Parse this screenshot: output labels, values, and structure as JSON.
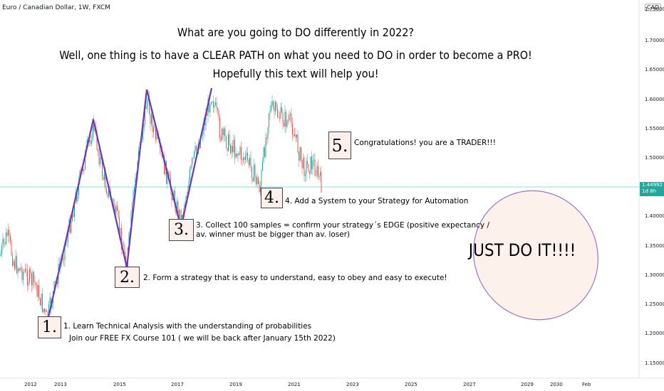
{
  "header": {
    "symbol_line": "Euro / Canadian Dollar, 1W, FXCM",
    "currency_badge": "CAD"
  },
  "headline": {
    "line1": "What are you going to DO differently in 2022?",
    "line2": "Well, one thing is to have a CLEAR PATH on what you need to DO in order to become a PRO!",
    "line3": "Hopefully this text will help you!"
  },
  "steps": [
    {
      "number": "1.",
      "text": "1. Learn Technical Analysis with the understanding of probabilities",
      "text2": "Join our FREE FX Course 101 ( we will be back after January 15th 2022)"
    },
    {
      "number": "2.",
      "text": "2. Form a strategy that is easy to understand, easy to obey and easy to execute!",
      "text2": ""
    },
    {
      "number": "3.",
      "text": "3. Collect 100 samples = confirm your strategy´s EDGE (positive expectancy /",
      "text2": "av. winner must be bigger than av. loser)"
    },
    {
      "number": "4.",
      "text": "4. Add a System to your Strategy for Automation",
      "text2": ""
    },
    {
      "number": "5.",
      "text": "Congratulations! you are a TRADER!!!",
      "text2": ""
    }
  ],
  "callout": {
    "text": "JUST DO IT!!!!"
  },
  "price_axis": {
    "labels": [
      "1.75000",
      "1.70000",
      "1.65000",
      "1.60000",
      "1.55000",
      "1.50000",
      "1.40000",
      "1.35000",
      "1.30000",
      "1.25000",
      "1.20000",
      "1.15000"
    ],
    "last_price": "1.44992",
    "last_price_sub": "1d 8h"
  },
  "time_axis": {
    "labels": [
      "2012",
      "2013",
      "2015",
      "2017",
      "2019",
      "2021",
      "2023",
      "2025",
      "2027",
      "2029",
      "2030",
      "Feb"
    ]
  },
  "colors": {
    "bull": "#26a69a",
    "bear": "#ef5350",
    "zigzag": "#673ab7",
    "price_line": "#26a69a",
    "note_bg": "#fcf0ec",
    "ellipse_fill": "#fdf1ec",
    "ellipse_stroke": "#9575cd"
  },
  "chart_data": {
    "type": "candlestick",
    "title": "Euro / Canadian Dollar, 1W, FXCM",
    "ylim": [
      1.13,
      1.76
    ],
    "zigzag_points": [
      {
        "label": "1",
        "price": 1.215
      },
      {
        "label": "peak",
        "price": 1.565
      },
      {
        "label": "2",
        "price": 1.31
      },
      {
        "label": "peak",
        "price": 1.615
      },
      {
        "label": "3",
        "price": 1.39
      },
      {
        "label": "peak",
        "price": 1.615
      }
    ],
    "last_price": 1.44992
  }
}
